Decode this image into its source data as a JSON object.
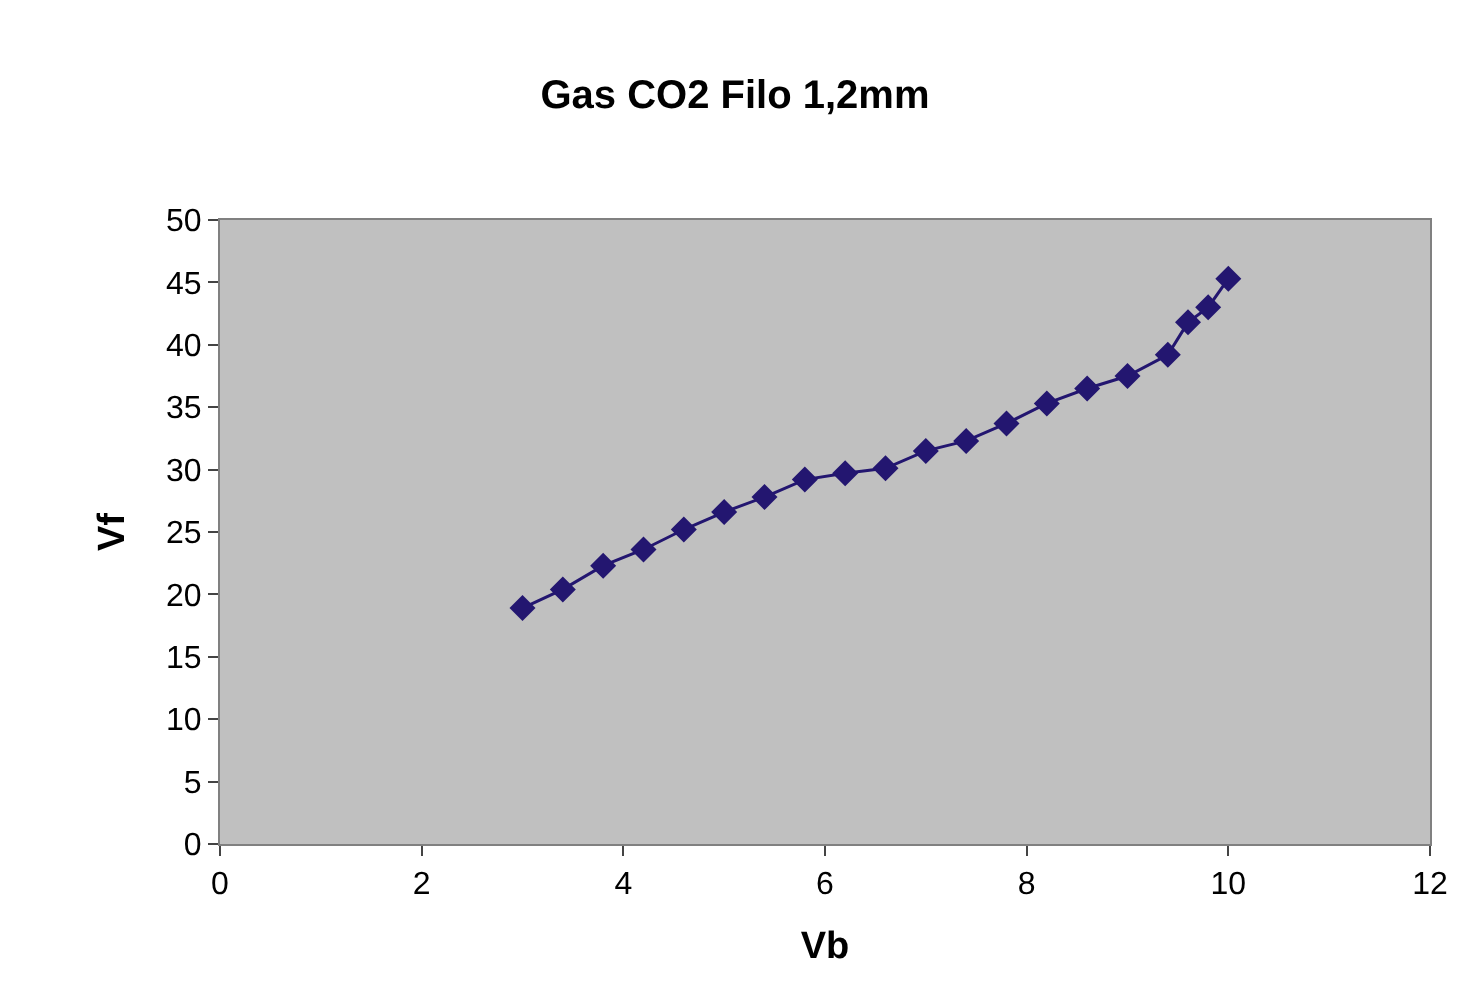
{
  "chart_data": {
    "type": "line",
    "title": "Gas CO2 Filo 1,2mm",
    "xlabel": "Vb",
    "ylabel": "Vf",
    "x": [
      3,
      3.4,
      3.8,
      4.2,
      4.6,
      5,
      5.4,
      5.8,
      6.2,
      6.6,
      7,
      7.4,
      7.8,
      8.2,
      8.6,
      9,
      9.4,
      9.6,
      9.8,
      10
    ],
    "series": [
      {
        "color": "#231670",
        "values": [
          18.9,
          20.4,
          22.3,
          23.6,
          25.2,
          26.6,
          27.8,
          29.2,
          29.7,
          30.1,
          31.5,
          32.3,
          33.7,
          35.3,
          36.5,
          37.5,
          39.2,
          41.8,
          43.0,
          45.3
        ]
      }
    ],
    "xlim": [
      0,
      12
    ],
    "xticks": [
      0,
      2,
      4,
      6,
      8,
      10,
      12
    ],
    "ylim": [
      0,
      50
    ],
    "yticks": [
      0,
      5,
      10,
      15,
      20,
      25,
      30,
      35,
      40,
      45,
      50
    ],
    "marker": "diamond",
    "line_style": "solid",
    "grid": false,
    "legend": false
  }
}
